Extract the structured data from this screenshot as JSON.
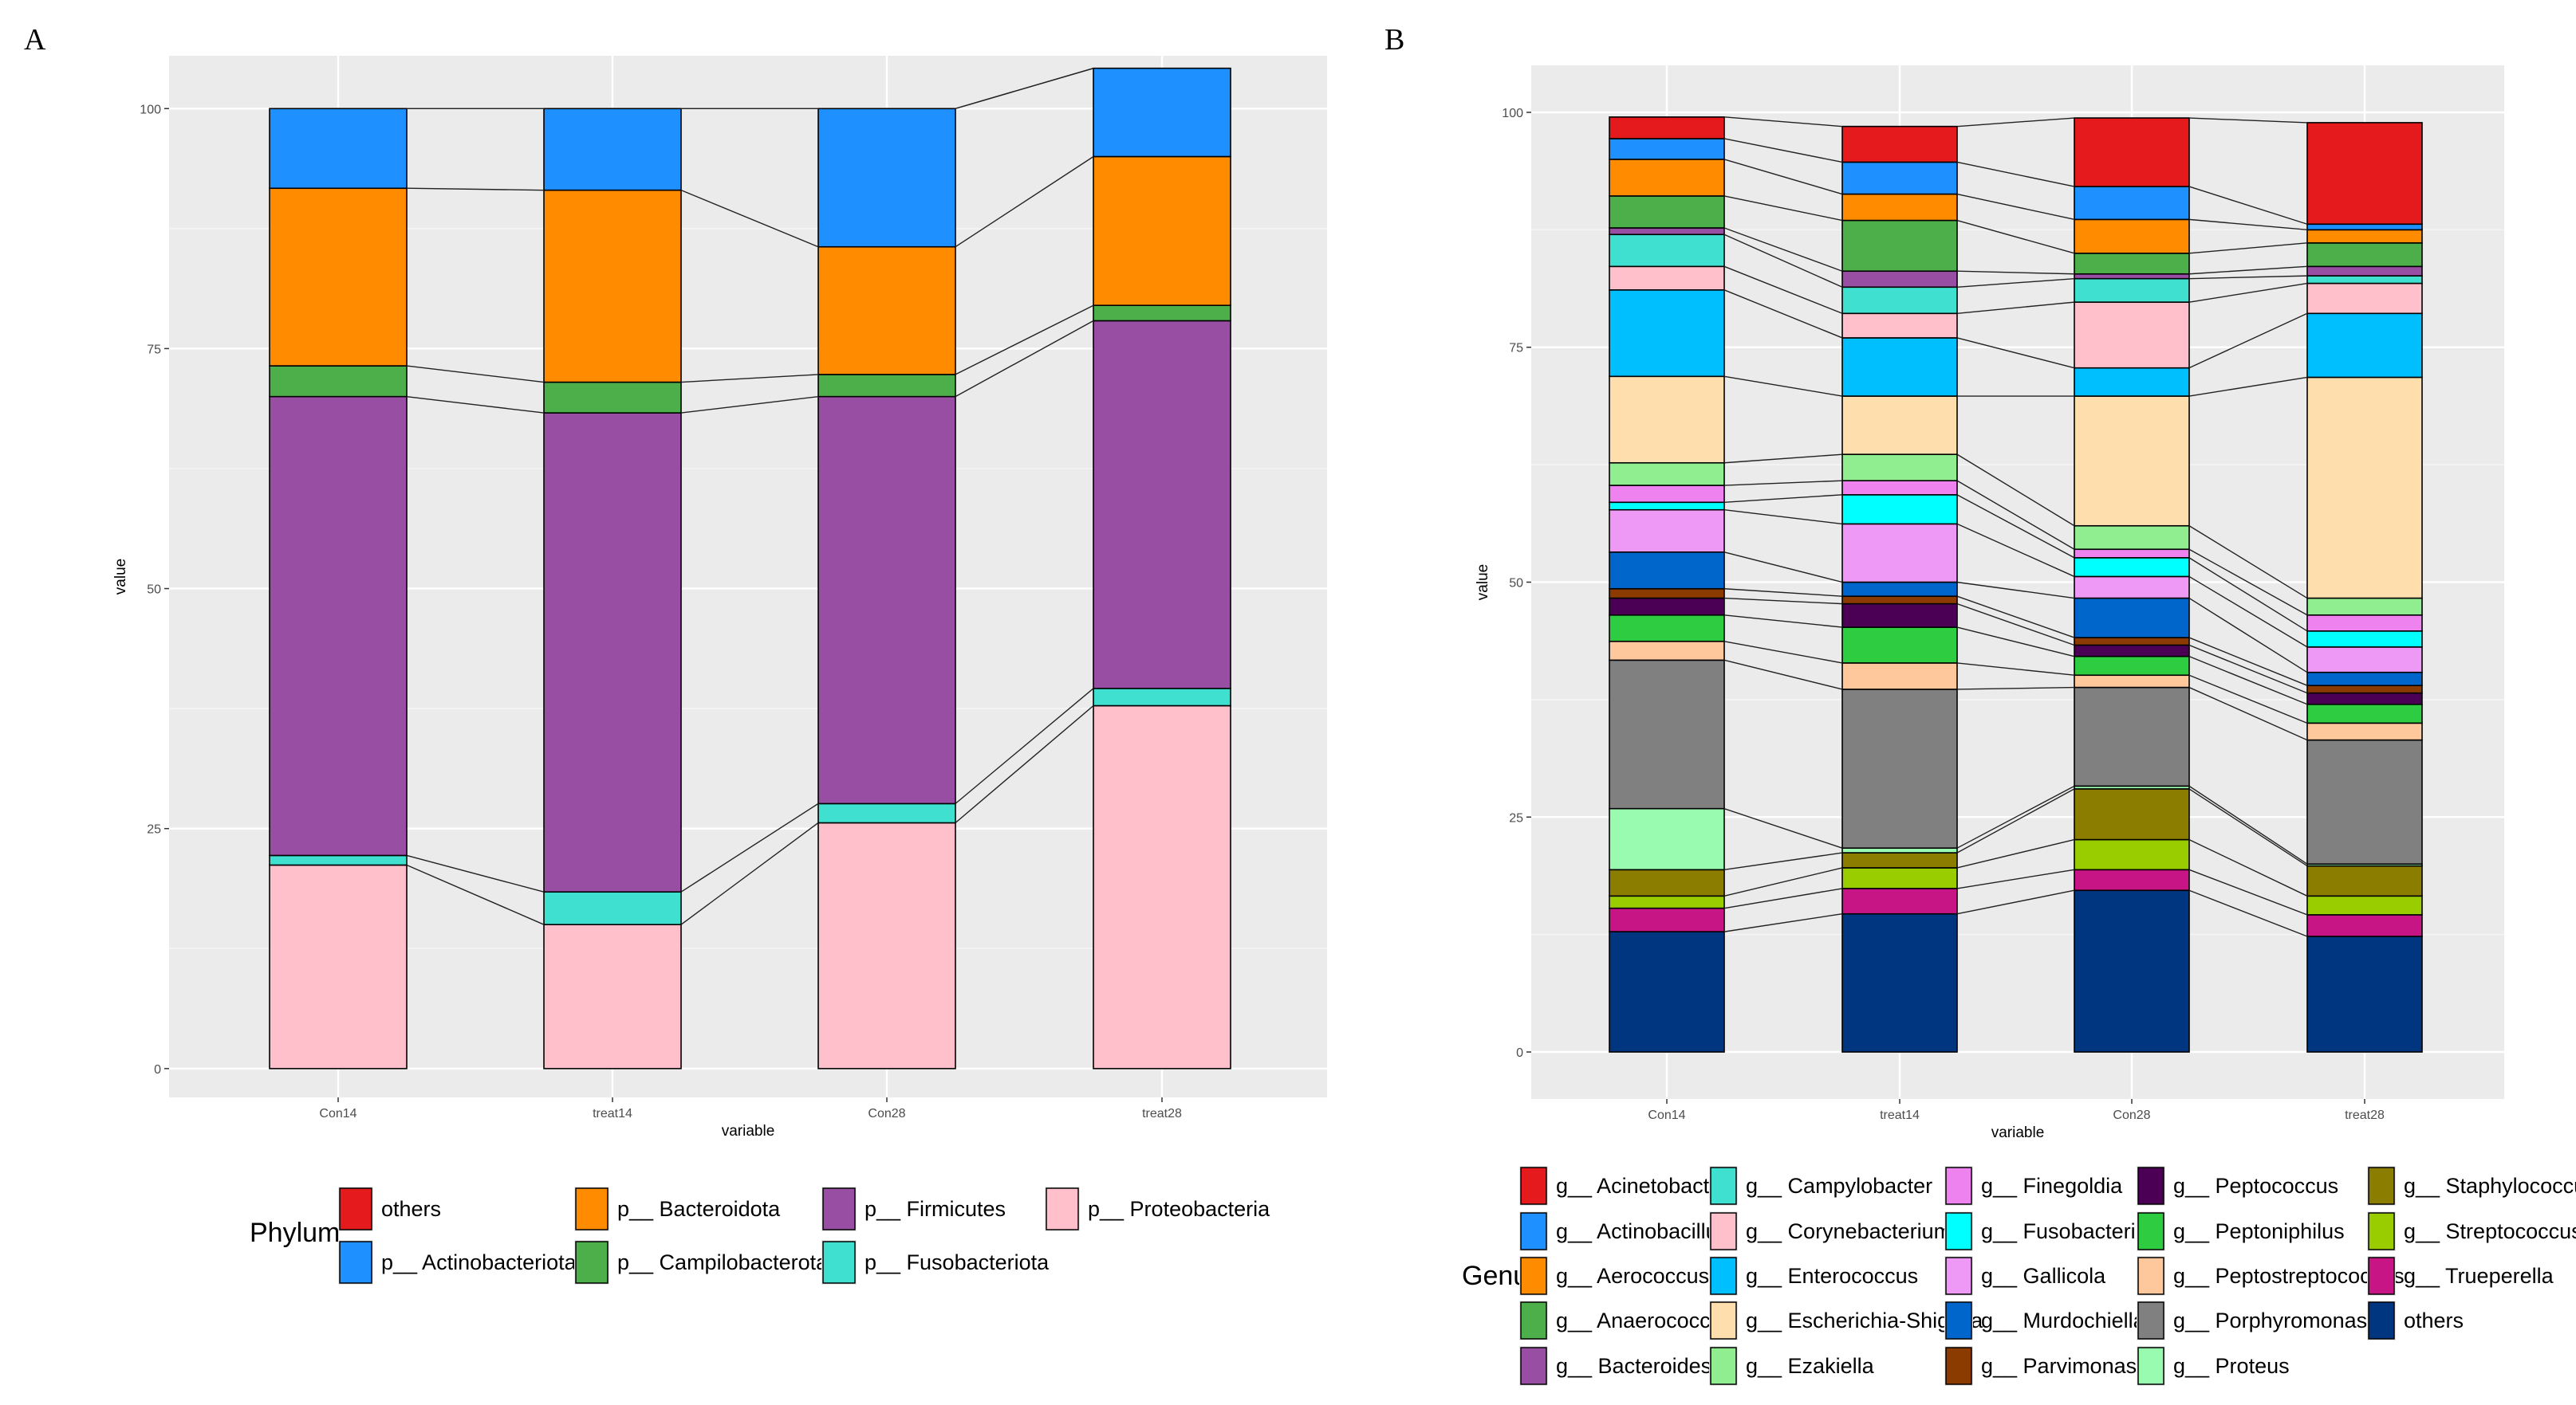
{
  "chart_data": [
    {
      "type": "bar",
      "panel": "A",
      "stacked": true,
      "xlabel": "variable",
      "ylabel": "value",
      "ylim": [
        -3,
        105.5
      ],
      "yticks": [
        0,
        25,
        50,
        75,
        100
      ],
      "categories": [
        "Con14",
        "treat14",
        "Con28",
        "treat28"
      ],
      "legend_title": "Phylum",
      "legend_position": "bottom",
      "grid": true,
      "series": [
        {
          "name": "p__ Proteobacteria",
          "color": "#FFC0CB",
          "values": [
            21.2,
            15.0,
            25.6,
            37.8
          ]
        },
        {
          "name": "p__ Fusobacteriota",
          "color": "#40E0D0",
          "values": [
            1.0,
            3.4,
            2.0,
            1.8
          ]
        },
        {
          "name": "p__ Firmicutes",
          "color": "#984EA3",
          "values": [
            47.8,
            49.9,
            42.4,
            38.3
          ]
        },
        {
          "name": "p__ Campilobacterota",
          "color": "#4DAF4A",
          "values": [
            3.2,
            3.2,
            2.3,
            1.6
          ]
        },
        {
          "name": "p__ Bacteroidota",
          "color": "#FF8C00",
          "values": [
            18.5,
            20.0,
            13.3,
            15.5
          ]
        },
        {
          "name": "p__ Actinobacteriota",
          "color": "#1E90FF",
          "values": [
            8.3,
            8.5,
            14.4,
            9.2
          ]
        },
        {
          "name": "others",
          "color": "#E41A1C",
          "values": [
            0.0,
            0.0,
            0.0,
            0.0
          ]
        }
      ],
      "legend": [
        {
          "name": "others",
          "color": "#E41A1C"
        },
        {
          "name": "p__ Actinobacteriota",
          "color": "#1E90FF"
        },
        {
          "name": "p__ Bacteroidota",
          "color": "#FF8C00"
        },
        {
          "name": "p__ Campilobacterota",
          "color": "#4DAF4A"
        },
        {
          "name": "p__ Firmicutes",
          "color": "#984EA3"
        },
        {
          "name": "p__ Fusobacteriota",
          "color": "#40E0D0"
        },
        {
          "name": "p__ Proteobacteria",
          "color": "#FFC0CB"
        }
      ]
    },
    {
      "type": "bar",
      "panel": "B",
      "stacked": true,
      "xlabel": "variable",
      "ylabel": "value",
      "ylim": [
        -5,
        105
      ],
      "yticks": [
        0,
        25,
        50,
        75,
        100
      ],
      "categories": [
        "Con14",
        "treat14",
        "Con28",
        "treat28"
      ],
      "legend_title": "Genu",
      "legend_position": "bottom",
      "grid": true,
      "series": [
        {
          "name": "others",
          "color": "#003580",
          "values": [
            12.8,
            14.7,
            17.2,
            12.3
          ]
        },
        {
          "name": "g__ Trueperella",
          "color": "#C71585",
          "values": [
            2.5,
            2.7,
            2.2,
            2.3
          ]
        },
        {
          "name": "g__ Streptococcus",
          "color": "#9ACD00",
          "values": [
            1.3,
            2.2,
            3.2,
            2.0
          ]
        },
        {
          "name": "g__ Staphylococcus",
          "color": "#8B7D00",
          "values": [
            2.8,
            1.6,
            5.4,
            3.2
          ]
        },
        {
          "name": "g__ Proteus",
          "color": "#98FBB0",
          "values": [
            6.5,
            0.5,
            0.3,
            0.2
          ]
        },
        {
          "name": "g__ Porphyromonas",
          "color": "#808080",
          "values": [
            15.8,
            16.9,
            10.5,
            13.2
          ]
        },
        {
          "name": "g__ Peptostreptococcus",
          "color": "#FFC89C",
          "values": [
            2.0,
            2.8,
            1.3,
            1.8
          ]
        },
        {
          "name": "g__ Peptoniphilus",
          "color": "#2ECC40",
          "values": [
            2.8,
            3.8,
            2.0,
            2.0
          ]
        },
        {
          "name": "g__ Peptococcus",
          "color": "#4B0055",
          "values": [
            1.8,
            2.5,
            1.2,
            1.2
          ]
        },
        {
          "name": "g__ Parvimonas",
          "color": "#8B3A00",
          "values": [
            1.0,
            0.8,
            0.8,
            0.8
          ]
        },
        {
          "name": "g__ Murdochiella",
          "color": "#0066CC",
          "values": [
            3.9,
            1.5,
            4.2,
            1.4
          ]
        },
        {
          "name": "g__ Gallicola",
          "color": "#EE99F5",
          "values": [
            4.5,
            6.2,
            2.3,
            2.7
          ]
        },
        {
          "name": "g__ Fusobacterium",
          "color": "#00FFFF",
          "values": [
            0.8,
            3.1,
            2.0,
            1.7
          ]
        },
        {
          "name": "g__ Finegoldia",
          "color": "#EE82EE",
          "values": [
            1.8,
            1.5,
            0.9,
            1.7
          ]
        },
        {
          "name": "g__ Ezakiella",
          "color": "#90EE90",
          "values": [
            2.4,
            2.8,
            2.5,
            1.8
          ]
        },
        {
          "name": "g__ Escherichia-Shigella",
          "color": "#FFDEAD",
          "values": [
            9.2,
            6.2,
            13.8,
            23.5
          ]
        },
        {
          "name": "g__ Enterococcus",
          "color": "#00BFFF",
          "values": [
            9.2,
            6.2,
            3.0,
            6.8
          ]
        },
        {
          "name": "g__ Corynebacterium",
          "color": "#FFC0CB",
          "values": [
            2.5,
            2.6,
            7.0,
            3.2
          ]
        },
        {
          "name": "g__ Campylobacter",
          "color": "#40E0D0",
          "values": [
            3.4,
            2.8,
            2.5,
            0.8
          ]
        },
        {
          "name": "g__ Bacteroides",
          "color": "#984EA3",
          "values": [
            0.7,
            1.7,
            0.5,
            1.0
          ]
        },
        {
          "name": "g__ Anaerococcus",
          "color": "#4DAF4A",
          "values": [
            3.4,
            5.4,
            2.2,
            2.5
          ]
        },
        {
          "name": "g__ Aerococcus",
          "color": "#FF8C00",
          "values": [
            3.9,
            2.8,
            3.6,
            1.4
          ]
        },
        {
          "name": "g__ Actinobacillus",
          "color": "#1E90FF",
          "values": [
            2.2,
            3.4,
            3.5,
            0.6
          ]
        },
        {
          "name": "g__ Acinetobacter",
          "color": "#E41A1C",
          "values": [
            2.3,
            3.8,
            7.3,
            10.8
          ]
        }
      ],
      "legend": [
        {
          "name": "g__ Acinetobacter",
          "color": "#E41A1C"
        },
        {
          "name": "g__ Actinobacillus",
          "color": "#1E90FF"
        },
        {
          "name": "g__ Aerococcus",
          "color": "#FF8C00"
        },
        {
          "name": "g__ Anaerococcus",
          "color": "#4DAF4A"
        },
        {
          "name": "g__ Bacteroides",
          "color": "#984EA3"
        },
        {
          "name": "g__ Campylobacter",
          "color": "#40E0D0"
        },
        {
          "name": "g__ Corynebacterium",
          "color": "#FFC0CB"
        },
        {
          "name": "g__ Enterococcus",
          "color": "#00BFFF"
        },
        {
          "name": "g__ Escherichia-Shigella",
          "color": "#FFDEAD"
        },
        {
          "name": "g__ Ezakiella",
          "color": "#90EE90"
        },
        {
          "name": "g__ Finegoldia",
          "color": "#EE82EE"
        },
        {
          "name": "g__ Fusobacterium",
          "color": "#00FFFF"
        },
        {
          "name": "g__ Gallicola",
          "color": "#EE99F5"
        },
        {
          "name": "g__ Murdochiella",
          "color": "#0066CC"
        },
        {
          "name": "g__ Parvimonas",
          "color": "#8B3A00"
        },
        {
          "name": "g__ Peptococcus",
          "color": "#4B0055"
        },
        {
          "name": "g__ Peptoniphilus",
          "color": "#2ECC40"
        },
        {
          "name": "g__ Peptostreptococcus",
          "color": "#FFC89C"
        },
        {
          "name": "g__ Porphyromonas",
          "color": "#808080"
        },
        {
          "name": "g__ Proteus",
          "color": "#98FBB0"
        },
        {
          "name": "g__ Staphylococcus",
          "color": "#8B7D00"
        },
        {
          "name": "g__ Streptococcus",
          "color": "#9ACD00"
        },
        {
          "name": "g__ Trueperella",
          "color": "#C71585"
        },
        {
          "name": "others",
          "color": "#003580"
        }
      ]
    }
  ]
}
